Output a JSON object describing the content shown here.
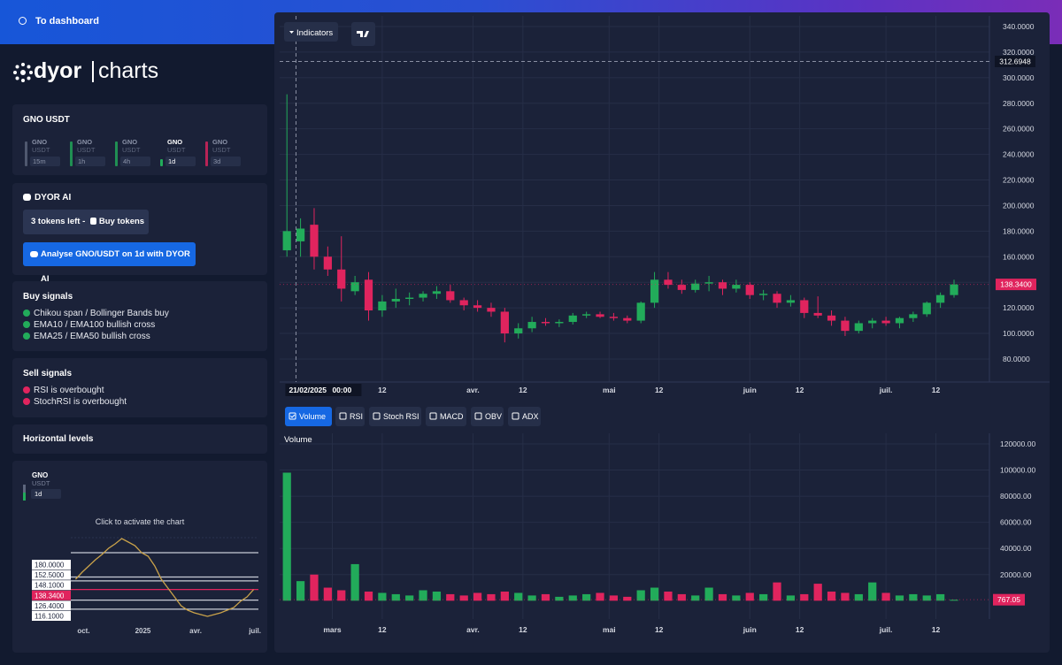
{
  "header": {
    "link": "To dashboard"
  },
  "logo": {
    "brand": "dyor",
    "product": "charts"
  },
  "pair_panel": {
    "title": "GNO USDT",
    "active": 3,
    "timeframes": [
      {
        "base": "GNO",
        "quote": "USDT",
        "interval": "15m",
        "color": "#5d667d"
      },
      {
        "base": "GNO",
        "quote": "USDT",
        "interval": "1h",
        "color": "#22ab5a"
      },
      {
        "base": "GNO",
        "quote": "USDT",
        "interval": "4h",
        "color": "#22ab5a"
      },
      {
        "base": "GNO",
        "quote": "USDT",
        "interval": "1d",
        "color": "#22ab5a"
      },
      {
        "base": "GNO",
        "quote": "USDT",
        "interval": "3d",
        "color": "#e0245e"
      }
    ]
  },
  "ai_panel": {
    "title": "DYOR AI",
    "tokens_left": "3 tokens left - ",
    "buy_tokens": "Buy tokens",
    "analyse": "Analyse GNO/USDT on 1d with DYOR AI"
  },
  "buy_signals": {
    "title": "Buy signals",
    "items": [
      "Chikou span / Bollinger Bands buy",
      "EMA10 / EMA100 bullish cross",
      "EMA25 / EMA50 bullish cross"
    ]
  },
  "sell_signals": {
    "title": "Sell signals",
    "items": [
      "RSI is overbought",
      "StochRSI is overbought"
    ]
  },
  "levels_panel": {
    "title": "Horizontal levels"
  },
  "mini_chart": {
    "type": "line",
    "base": "GNO",
    "quote": "USDT",
    "interval": "1d",
    "hint": "Click to activate the chart",
    "color": "#c9a24a",
    "values": [
      150,
      158,
      165,
      172,
      178,
      185,
      190,
      196,
      192,
      188,
      180,
      176,
      165,
      150,
      140,
      130,
      120,
      115,
      112,
      110,
      108,
      110,
      112,
      115,
      118,
      125,
      130,
      138.34
    ],
    "xlim": [
      -1,
      28
    ],
    "ylim": [
      100,
      200
    ],
    "xticks": [
      {
        "value": 0,
        "label": "oct."
      },
      {
        "value": 9,
        "label": "2025"
      },
      {
        "value": 17,
        "label": "avr."
      },
      {
        "value": 26,
        "label": "juil."
      }
    ],
    "levels": [
      {
        "value": 180,
        "label": "180.0000"
      },
      {
        "value": 152.5,
        "label": "152.5000"
      },
      {
        "value": 148.1,
        "label": "148.1000"
      },
      {
        "value": 138.34,
        "label": "138.3400"
      },
      {
        "value": 126.4,
        "label": "126.4000"
      },
      {
        "value": 116.1,
        "label": "116.1000"
      }
    ],
    "current_level": 3
  },
  "chart_data": {
    "type": "candlestick",
    "indicators_button": "Indicators",
    "up_color": "#22ab5a",
    "down_color": "#e0245e",
    "x": [
      0,
      3,
      6,
      9,
      12,
      15,
      18,
      21,
      24,
      27,
      30,
      33,
      36,
      39,
      42,
      45,
      48,
      51,
      54,
      57,
      60,
      63,
      66,
      69,
      72,
      75,
      78,
      81,
      84,
      87,
      90,
      93,
      96,
      99,
      102,
      105,
      108,
      111,
      114,
      117,
      120,
      123,
      126,
      129,
      132,
      135,
      138,
      141,
      144,
      147
    ],
    "open": [
      165,
      172,
      185,
      160,
      150,
      133,
      142,
      118,
      125,
      127,
      128,
      131,
      133,
      126,
      122,
      120,
      117,
      100,
      104,
      109,
      108,
      109,
      114,
      115,
      113,
      112,
      110,
      124,
      142,
      138,
      134,
      139,
      140,
      135,
      138,
      130,
      131,
      124,
      126,
      116,
      114,
      110,
      102,
      108,
      110,
      108,
      112,
      115,
      124,
      130
    ],
    "high": [
      287,
      190,
      198,
      168,
      176,
      145,
      148,
      130,
      135,
      132,
      133,
      137,
      138,
      128,
      126,
      124,
      120,
      108,
      113,
      112,
      111,
      116,
      117,
      117,
      116,
      114,
      125,
      148,
      148,
      142,
      142,
      145,
      142,
      142,
      140,
      134,
      133,
      130,
      128,
      129,
      118,
      113,
      110,
      112,
      113,
      113,
      117,
      125,
      132,
      142
    ],
    "low": [
      160,
      160,
      150,
      145,
      125,
      130,
      110,
      113,
      120,
      122,
      125,
      127,
      124,
      118,
      117,
      113,
      93,
      96,
      101,
      106,
      105,
      107,
      112,
      112,
      110,
      108,
      108,
      120,
      135,
      131,
      132,
      133,
      130,
      132,
      127,
      126,
      120,
      121,
      112,
      112,
      106,
      98,
      100,
      104,
      106,
      104,
      109,
      113,
      120,
      128
    ],
    "close": [
      180,
      182,
      160,
      150,
      135,
      140,
      118,
      125,
      127,
      128,
      131,
      133,
      126,
      122,
      120,
      117,
      100,
      104,
      109,
      108,
      109,
      114,
      115,
      113,
      112,
      110,
      124,
      142,
      138,
      134,
      139,
      140,
      135,
      138,
      130,
      131,
      124,
      126,
      116,
      114,
      110,
      102,
      108,
      110,
      108,
      112,
      115,
      124,
      130,
      138.34
    ],
    "xlim": [
      -1.6,
      154.8
    ],
    "ylim": [
      62,
      348.3
    ],
    "xticks": [
      {
        "value": 21,
        "label": "12"
      },
      {
        "value": 41,
        "label": "avr."
      },
      {
        "value": 52,
        "label": "12"
      },
      {
        "value": 71,
        "label": "mai"
      },
      {
        "value": 82,
        "label": "12"
      },
      {
        "value": 102,
        "label": "juin"
      },
      {
        "value": 113,
        "label": "12"
      },
      {
        "value": 132,
        "label": "juil."
      },
      {
        "value": 143,
        "label": "12"
      }
    ],
    "yticks": [
      {
        "value": 80,
        "label": "80.0000"
      },
      {
        "value": 100,
        "label": "100.0000"
      },
      {
        "value": 120,
        "label": "120.0000"
      },
      {
        "value": 140,
        "label": "140.0000"
      },
      {
        "value": 160,
        "label": "160.0000"
      },
      {
        "value": 180,
        "label": "180.0000"
      },
      {
        "value": 200,
        "label": "200.0000"
      },
      {
        "value": 220,
        "label": "220.0000"
      },
      {
        "value": 240,
        "label": "240.0000"
      },
      {
        "value": 260,
        "label": "260.0000"
      },
      {
        "value": 280,
        "label": "280.0000"
      },
      {
        "value": 300,
        "label": "300.0000"
      },
      {
        "value": 320,
        "label": "320.0000"
      },
      {
        "value": 340,
        "label": "340.0000"
      }
    ],
    "grid": true,
    "last_price": {
      "value": 138.34,
      "label": "138.3400"
    },
    "crosshair": {
      "x": 2,
      "date": "21/02/2025",
      "time": "00:00",
      "price": {
        "value": 312.6948,
        "label": "312.6948"
      }
    },
    "indicators": [
      "Volume",
      "RSI",
      "Stoch RSI",
      "MACD",
      "OBV",
      "ADX"
    ],
    "active_indicator": 0,
    "volume": {
      "title": "Volume",
      "values": [
        98000,
        15000,
        20000,
        10000,
        8000,
        28000,
        7000,
        6000,
        5000,
        4000,
        8000,
        7000,
        5000,
        4000,
        6000,
        5000,
        7000,
        6000,
        4000,
        5000,
        3000,
        4000,
        5000,
        6000,
        4000,
        3000,
        8000,
        10000,
        7000,
        5000,
        4000,
        10000,
        5000,
        4000,
        6000,
        5000,
        14000,
        4000,
        5000,
        13000,
        7000,
        6000,
        5000,
        14000,
        6000,
        4000,
        5000,
        4000,
        5000,
        767.05
      ],
      "ylim": [
        -14000,
        128100
      ],
      "yticks": [
        {
          "value": 20000,
          "label": "20000.00"
        },
        {
          "value": 40000,
          "label": "40000.00"
        },
        {
          "value": 60000,
          "label": "60000.00"
        },
        {
          "value": 80000,
          "label": "80000.00"
        },
        {
          "value": 100000,
          "label": "100000.00"
        },
        {
          "value": 120000,
          "label": "120000.00"
        }
      ],
      "xticks": [
        {
          "value": 10,
          "label": "mars"
        },
        {
          "value": 21,
          "label": "12"
        },
        {
          "value": 41,
          "label": "avr."
        },
        {
          "value": 52,
          "label": "12"
        },
        {
          "value": 71,
          "label": "mai"
        },
        {
          "value": 82,
          "label": "12"
        },
        {
          "value": 102,
          "label": "juin"
        },
        {
          "value": 113,
          "label": "12"
        },
        {
          "value": 132,
          "label": "juil."
        },
        {
          "value": 143,
          "label": "12"
        }
      ],
      "last_label": 767.05
    }
  }
}
